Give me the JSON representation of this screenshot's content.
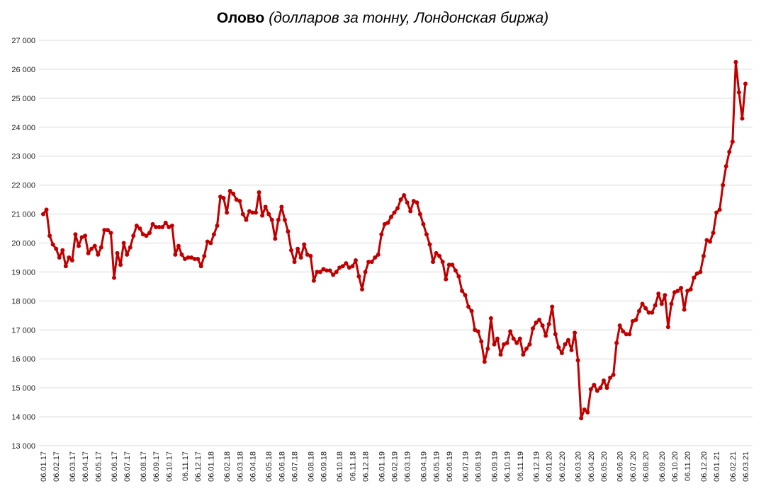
{
  "chart_data": {
    "type": "line",
    "title": "Олово",
    "subtitle": "(долларов за тонну, Лондонская биржа)",
    "color": "#c00000",
    "grid": true,
    "ylim": [
      13000,
      27000
    ],
    "yticks": [
      {
        "value": 13000,
        "label": "13 000"
      },
      {
        "value": 14000,
        "label": "14 000"
      },
      {
        "value": 15000,
        "label": "15 000"
      },
      {
        "value": 16000,
        "label": "16 000"
      },
      {
        "value": 17000,
        "label": "17 000"
      },
      {
        "value": 18000,
        "label": "18 000"
      },
      {
        "value": 19000,
        "label": "19 000"
      },
      {
        "value": 20000,
        "label": "20 000"
      },
      {
        "value": 21000,
        "label": "21 000"
      },
      {
        "value": 22000,
        "label": "22 000"
      },
      {
        "value": 23000,
        "label": "23 000"
      },
      {
        "value": 24000,
        "label": "24 000"
      },
      {
        "value": 25000,
        "label": "25 000"
      },
      {
        "value": 26000,
        "label": "26 000"
      },
      {
        "value": 27000,
        "label": "27 000"
      }
    ],
    "categories": [
      "06.01.17",
      null,
      null,
      null,
      "06.02.17",
      null,
      null,
      null,
      null,
      "06.03.17",
      null,
      null,
      null,
      "06.04.17",
      null,
      null,
      null,
      "06.05.17",
      null,
      null,
      null,
      null,
      "06.06.17",
      null,
      null,
      null,
      "06.07.17",
      null,
      null,
      null,
      null,
      "06.08.17",
      null,
      null,
      null,
      "06.09.17",
      null,
      null,
      null,
      "06.10.17",
      null,
      null,
      null,
      null,
      "06.11.17",
      null,
      null,
      null,
      "06.12.17",
      null,
      null,
      null,
      "06.01.18",
      null,
      null,
      null,
      null,
      "06.02.18",
      null,
      null,
      null,
      "06.03.18",
      null,
      null,
      null,
      "06.04.18",
      null,
      null,
      null,
      null,
      "06.05.18",
      null,
      null,
      null,
      "06.06.18",
      null,
      null,
      null,
      "06.07.18",
      null,
      null,
      null,
      null,
      "06.08.18",
      null,
      null,
      null,
      "06.09.18",
      null,
      null,
      null,
      null,
      "06.10.18",
      null,
      null,
      null,
      "06.11.18",
      null,
      null,
      null,
      "06.12.18",
      null,
      null,
      null,
      null,
      "06.01.19",
      null,
      null,
      null,
      "06.02.19",
      null,
      null,
      null,
      "06.03.19",
      null,
      null,
      null,
      null,
      "06.04.19",
      null,
      null,
      null,
      "06.05.19",
      null,
      null,
      null,
      "06.06.19",
      null,
      null,
      null,
      null,
      "06.07.19",
      null,
      null,
      null,
      "06.08.19",
      null,
      null,
      null,
      null,
      "06.09.19",
      null,
      null,
      null,
      "06.10.19",
      null,
      null,
      null,
      "06.11.19",
      null,
      null,
      null,
      null,
      "06.12.19",
      null,
      null,
      null,
      "06.01.20",
      null,
      null,
      null,
      "06.02.20",
      null,
      null,
      null,
      null,
      "06.03.20",
      null,
      null,
      null,
      "06.04.20",
      null,
      null,
      null,
      "06.05.20",
      null,
      null,
      null,
      null,
      "06.06.20",
      null,
      null,
      null,
      "06.07.20",
      null,
      null,
      null,
      "06.08.20",
      null,
      null,
      null,
      null,
      "06.09.20",
      null,
      null,
      null,
      "06.10.20",
      null,
      null,
      null,
      "06.11.20",
      null,
      null,
      null,
      null,
      "06.12.20",
      null,
      null,
      null,
      "06.01.21",
      null,
      null,
      null,
      null,
      "06.02.21",
      null,
      null,
      null,
      "06.03.21"
    ],
    "values": [
      21000,
      21150,
      20250,
      19950,
      19800,
      19500,
      19750,
      19200,
      19500,
      19400,
      20300,
      19900,
      20200,
      20250,
      19650,
      19800,
      19900,
      19600,
      19850,
      20450,
      20450,
      20350,
      18800,
      19650,
      19250,
      20000,
      19600,
      19850,
      20250,
      20600,
      20500,
      20300,
      20250,
      20350,
      20650,
      20550,
      20550,
      20550,
      20700,
      20550,
      20600,
      19600,
      19900,
      19600,
      19450,
      19500,
      19500,
      19450,
      19450,
      19200,
      19550,
      20050,
      20000,
      20300,
      20600,
      21600,
      21550,
      21050,
      21800,
      21700,
      21500,
      21450,
      21000,
      20800,
      21100,
      21050,
      21050,
      21750,
      20950,
      21250,
      21000,
      20800,
      20150,
      20800,
      21250,
      20800,
      20400,
      19750,
      19350,
      19800,
      19500,
      19950,
      19600,
      19550,
      18700,
      19000,
      19000,
      19100,
      19050,
      19050,
      18900,
      19000,
      19150,
      19200,
      19300,
      19150,
      19200,
      19400,
      18850,
      18400,
      19000,
      19350,
      19350,
      19500,
      19600,
      20300,
      20650,
      20700,
      20900,
      21050,
      21200,
      21500,
      21650,
      21400,
      21100,
      21450,
      21400,
      21000,
      20650,
      20300,
      19950,
      19350,
      19650,
      19550,
      19350,
      18750,
      19250,
      19250,
      19050,
      18850,
      18350,
      18200,
      17800,
      17650,
      17000,
      16950,
      16600,
      15900,
      16350,
      17400,
      16500,
      16700,
      16150,
      16500,
      16550,
      16950,
      16700,
      16550,
      16700,
      16150,
      16350,
      16500,
      17050,
      17250,
      17350,
      17150,
      16800,
      17200,
      17800,
      16850,
      16400,
      16200,
      16500,
      16650,
      16300,
      16900,
      15950,
      13950,
      14250,
      14150,
      14950,
      15100,
      14900,
      15000,
      15250,
      15000,
      15350,
      15450,
      16550,
      17150,
      16950,
      16850,
      16850,
      17300,
      17350,
      17650,
      17900,
      17750,
      17600,
      17600,
      17850,
      18250,
      17900,
      18200,
      17100,
      17900,
      18300,
      18350,
      18450,
      17700,
      18350,
      18400,
      18800,
      18950,
      19000,
      19550,
      20100,
      20050,
      20350,
      21050,
      21150,
      22000,
      22650,
      23150,
      23500,
      26250,
      25200,
      24300,
      25500
    ]
  }
}
